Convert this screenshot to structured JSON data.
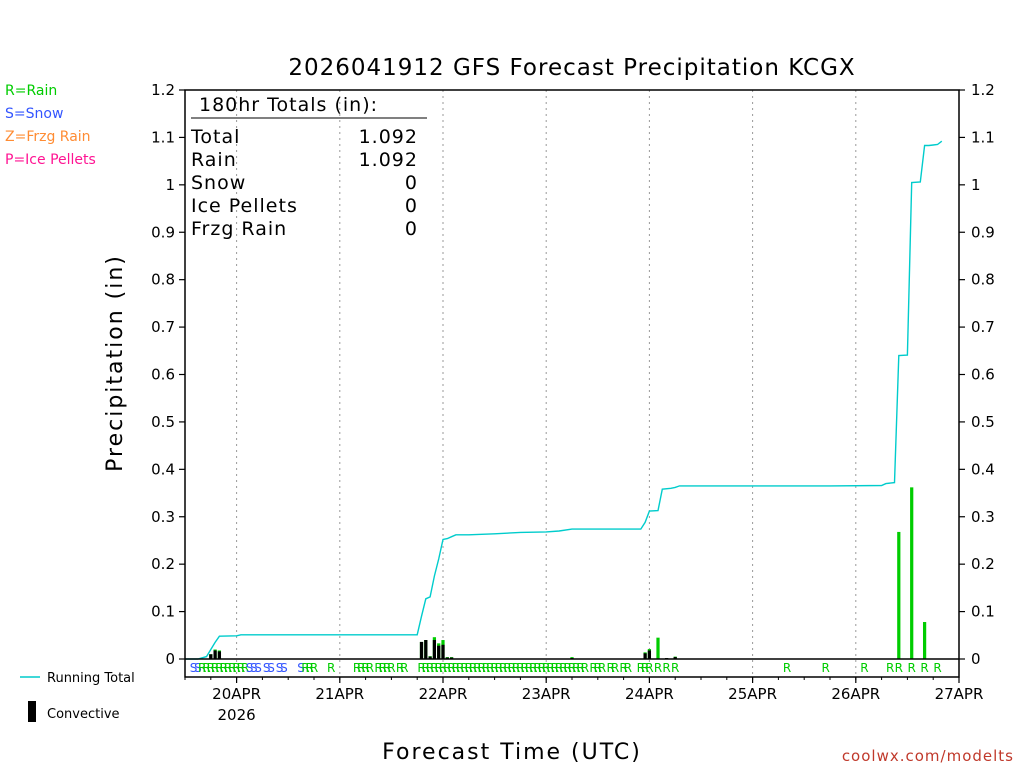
{
  "chart_data": {
    "type": "bar",
    "title": "2026041912 GFS Forecast Precipitation KCGX",
    "xlabel": "Forecast Time (UTC)",
    "ylabel": "Precipitation (in)",
    "ylim": [
      0,
      1.2
    ],
    "y_ticks": [
      "0",
      "0.1",
      "0.2",
      "0.3",
      "0.4",
      "0.5",
      "0.6",
      "0.7",
      "0.8",
      "0.9",
      "1",
      "1.1",
      "1.2"
    ],
    "x_range_hours": [
      0,
      180
    ],
    "x_ticks": [
      {
        "hour": 12,
        "label": "20APR",
        "sub": "2026"
      },
      {
        "hour": 36,
        "label": "21APR",
        "sub": ""
      },
      {
        "hour": 60,
        "label": "22APR",
        "sub": ""
      },
      {
        "hour": 84,
        "label": "23APR",
        "sub": ""
      },
      {
        "hour": 108,
        "label": "24APR",
        "sub": ""
      },
      {
        "hour": 132,
        "label": "25APR",
        "sub": ""
      },
      {
        "hour": 156,
        "label": "26APR",
        "sub": ""
      },
      {
        "hour": 180,
        "label": "27APR",
        "sub": ""
      }
    ],
    "grid": "dotted vertical lines at day boundaries",
    "totals_box": {
      "heading": "180hr Totals (in):",
      "rows": [
        {
          "label": "Total",
          "value": "1.092"
        },
        {
          "label": "Rain",
          "value": "1.092"
        },
        {
          "label": "Snow",
          "value": "0"
        },
        {
          "label": "Ice Pellets",
          "value": "0"
        },
        {
          "label": "Frzg Rain",
          "value": "0"
        }
      ]
    },
    "precip_key": [
      {
        "text": "R=Rain",
        "color": "#00cc00"
      },
      {
        "text": "S=Snow",
        "color": "#3355ff"
      },
      {
        "text": "Z=Frzg Rain",
        "color": "#ff8c33"
      },
      {
        "text": "P=Ice Pellets",
        "color": "#ff1493"
      }
    ],
    "legend": {
      "running_total": "Running Total",
      "convective": "Convective"
    },
    "running_total": {
      "name": "Running Total",
      "color": "#00cccc",
      "points": [
        [
          0,
          0
        ],
        [
          3,
          0
        ],
        [
          5,
          0.005
        ],
        [
          6,
          0.02
        ],
        [
          7,
          0.035
        ],
        [
          8,
          0.048
        ],
        [
          12,
          0.049
        ],
        [
          13,
          0.051
        ],
        [
          18,
          0.051
        ],
        [
          30,
          0.051
        ],
        [
          54,
          0.051
        ],
        [
          55,
          0.09
        ],
        [
          56,
          0.127
        ],
        [
          57,
          0.131
        ],
        [
          58,
          0.175
        ],
        [
          59,
          0.211
        ],
        [
          60,
          0.252
        ],
        [
          61,
          0.254
        ],
        [
          62,
          0.258
        ],
        [
          63,
          0.262
        ],
        [
          66,
          0.262
        ],
        [
          72,
          0.264
        ],
        [
          78,
          0.267
        ],
        [
          84,
          0.268
        ],
        [
          87,
          0.27
        ],
        [
          90,
          0.274
        ],
        [
          96,
          0.274
        ],
        [
          102,
          0.274
        ],
        [
          106,
          0.274
        ],
        [
          107,
          0.288
        ],
        [
          108,
          0.312
        ],
        [
          110,
          0.313
        ],
        [
          111,
          0.358
        ],
        [
          113,
          0.36
        ],
        [
          114,
          0.362
        ],
        [
          115,
          0.365
        ],
        [
          126,
          0.365
        ],
        [
          150,
          0.365
        ],
        [
          162,
          0.366
        ],
        [
          163,
          0.37
        ],
        [
          164,
          0.371
        ],
        [
          165,
          0.372
        ],
        [
          166,
          0.64
        ],
        [
          168,
          0.641
        ],
        [
          169,
          1.005
        ],
        [
          171,
          1.006
        ],
        [
          172,
          1.083
        ],
        [
          173,
          1.083
        ],
        [
          174,
          1.084
        ],
        [
          175,
          1.085
        ],
        [
          176,
          1.092
        ]
      ]
    },
    "precip_bars": [
      {
        "hour": 6,
        "total": 0.01,
        "conv": 0.01
      },
      {
        "hour": 7,
        "total": 0.02,
        "conv": 0.018
      },
      {
        "hour": 8,
        "total": 0.018,
        "conv": 0.016
      },
      {
        "hour": 55,
        "total": 0.036,
        "conv": 0.036
      },
      {
        "hour": 56,
        "total": 0.04,
        "conv": 0.04
      },
      {
        "hour": 57,
        "total": 0.006,
        "conv": 0.005
      },
      {
        "hour": 58,
        "total": 0.046,
        "conv": 0.04
      },
      {
        "hour": 59,
        "total": 0.033,
        "conv": 0.028
      },
      {
        "hour": 60,
        "total": 0.04,
        "conv": 0.03
      },
      {
        "hour": 61,
        "total": 0.004,
        "conv": 0.003
      },
      {
        "hour": 62,
        "total": 0.004,
        "conv": 0.003
      },
      {
        "hour": 90,
        "total": 0.004,
        "conv": 0.002
      },
      {
        "hour": 107,
        "total": 0.014,
        "conv": 0.012
      },
      {
        "hour": 108,
        "total": 0.021,
        "conv": 0.018
      },
      {
        "hour": 110,
        "total": 0.045,
        "conv": 0.0
      },
      {
        "hour": 112,
        "total": 0.002,
        "conv": 0.002
      },
      {
        "hour": 114,
        "total": 0.005,
        "conv": 0.004
      },
      {
        "hour": 166,
        "total": 0.268,
        "conv": 0.0
      },
      {
        "hour": 169,
        "total": 0.362,
        "conv": 0.0
      },
      {
        "hour": 172,
        "total": 0.078,
        "conv": 0.0
      }
    ],
    "ptype_row": [
      {
        "hour": 2,
        "t": "S",
        "c": "#3355ff"
      },
      {
        "hour": 3,
        "t": "S",
        "c": "#3355ff"
      },
      {
        "hour": 4,
        "t": "R",
        "c": "#00cc00"
      },
      {
        "hour": 5,
        "t": "R",
        "c": "#00cc00"
      },
      {
        "hour": 6,
        "t": "R",
        "c": "#00cc00"
      },
      {
        "hour": 7,
        "t": "R",
        "c": "#00cc00"
      },
      {
        "hour": 8,
        "t": "R",
        "c": "#00cc00"
      },
      {
        "hour": 9,
        "t": "R",
        "c": "#00cc00"
      },
      {
        "hour": 10,
        "t": "R",
        "c": "#00cc00"
      },
      {
        "hour": 11,
        "t": "R",
        "c": "#00cc00"
      },
      {
        "hour": 12,
        "t": "R",
        "c": "#00cc00"
      },
      {
        "hour": 13,
        "t": "R",
        "c": "#00cc00"
      },
      {
        "hour": 14,
        "t": "R",
        "c": "#00cc00"
      },
      {
        "hour": 15,
        "t": "S",
        "c": "#3355ff"
      },
      {
        "hour": 16,
        "t": "S",
        "c": "#3355ff"
      },
      {
        "hour": 17,
        "t": "S",
        "c": "#3355ff"
      },
      {
        "hour": 19,
        "t": "S",
        "c": "#3355ff"
      },
      {
        "hour": 20,
        "t": "S",
        "c": "#3355ff"
      },
      {
        "hour": 22,
        "t": "S",
        "c": "#3355ff"
      },
      {
        "hour": 23,
        "t": "S",
        "c": "#3355ff"
      },
      {
        "hour": 27,
        "t": "S",
        "c": "#3355ff"
      },
      {
        "hour": 28,
        "t": "R",
        "c": "#00cc00"
      },
      {
        "hour": 29,
        "t": "R",
        "c": "#00cc00"
      },
      {
        "hour": 30,
        "t": "R",
        "c": "#00cc00"
      },
      {
        "hour": 34,
        "t": "R",
        "c": "#00cc00"
      },
      {
        "hour": 40,
        "t": "R",
        "c": "#00cc00"
      },
      {
        "hour": 41,
        "t": "R",
        "c": "#00cc00"
      },
      {
        "hour": 42,
        "t": "R",
        "c": "#00cc00"
      },
      {
        "hour": 43,
        "t": "R",
        "c": "#00cc00"
      },
      {
        "hour": 45,
        "t": "R",
        "c": "#00cc00"
      },
      {
        "hour": 46,
        "t": "R",
        "c": "#00cc00"
      },
      {
        "hour": 47,
        "t": "R",
        "c": "#00cc00"
      },
      {
        "hour": 48,
        "t": "R",
        "c": "#00cc00"
      },
      {
        "hour": 50,
        "t": "R",
        "c": "#00cc00"
      },
      {
        "hour": 51,
        "t": "R",
        "c": "#00cc00"
      },
      {
        "hour": 55,
        "t": "R",
        "c": "#00cc00"
      },
      {
        "hour": 56,
        "t": "R",
        "c": "#00cc00"
      },
      {
        "hour": 57,
        "t": "R",
        "c": "#00cc00"
      },
      {
        "hour": 58,
        "t": "R",
        "c": "#00cc00"
      },
      {
        "hour": 59,
        "t": "R",
        "c": "#00cc00"
      },
      {
        "hour": 60,
        "t": "R",
        "c": "#00cc00"
      },
      {
        "hour": 61,
        "t": "R",
        "c": "#00cc00"
      },
      {
        "hour": 62,
        "t": "R",
        "c": "#00cc00"
      },
      {
        "hour": 63,
        "t": "R",
        "c": "#00cc00"
      },
      {
        "hour": 64,
        "t": "R",
        "c": "#00cc00"
      },
      {
        "hour": 65,
        "t": "R",
        "c": "#00cc00"
      },
      {
        "hour": 66,
        "t": "R",
        "c": "#00cc00"
      },
      {
        "hour": 67,
        "t": "R",
        "c": "#00cc00"
      },
      {
        "hour": 68,
        "t": "R",
        "c": "#00cc00"
      },
      {
        "hour": 69,
        "t": "R",
        "c": "#00cc00"
      },
      {
        "hour": 70,
        "t": "R",
        "c": "#00cc00"
      },
      {
        "hour": 71,
        "t": "R",
        "c": "#00cc00"
      },
      {
        "hour": 72,
        "t": "R",
        "c": "#00cc00"
      },
      {
        "hour": 73,
        "t": "R",
        "c": "#00cc00"
      },
      {
        "hour": 74,
        "t": "R",
        "c": "#00cc00"
      },
      {
        "hour": 75,
        "t": "R",
        "c": "#00cc00"
      },
      {
        "hour": 76,
        "t": "R",
        "c": "#00cc00"
      },
      {
        "hour": 77,
        "t": "R",
        "c": "#00cc00"
      },
      {
        "hour": 78,
        "t": "R",
        "c": "#00cc00"
      },
      {
        "hour": 79,
        "t": "R",
        "c": "#00cc00"
      },
      {
        "hour": 80,
        "t": "R",
        "c": "#00cc00"
      },
      {
        "hour": 81,
        "t": "R",
        "c": "#00cc00"
      },
      {
        "hour": 82,
        "t": "R",
        "c": "#00cc00"
      },
      {
        "hour": 83,
        "t": "R",
        "c": "#00cc00"
      },
      {
        "hour": 84,
        "t": "R",
        "c": "#00cc00"
      },
      {
        "hour": 85,
        "t": "R",
        "c": "#00cc00"
      },
      {
        "hour": 86,
        "t": "R",
        "c": "#00cc00"
      },
      {
        "hour": 87,
        "t": "R",
        "c": "#00cc00"
      },
      {
        "hour": 88,
        "t": "R",
        "c": "#00cc00"
      },
      {
        "hour": 89,
        "t": "R",
        "c": "#00cc00"
      },
      {
        "hour": 90,
        "t": "R",
        "c": "#00cc00"
      },
      {
        "hour": 91,
        "t": "R",
        "c": "#00cc00"
      },
      {
        "hour": 92,
        "t": "R",
        "c": "#00cc00"
      },
      {
        "hour": 93,
        "t": "R",
        "c": "#00cc00"
      },
      {
        "hour": 95,
        "t": "R",
        "c": "#00cc00"
      },
      {
        "hour": 96,
        "t": "R",
        "c": "#00cc00"
      },
      {
        "hour": 97,
        "t": "R",
        "c": "#00cc00"
      },
      {
        "hour": 99,
        "t": "R",
        "c": "#00cc00"
      },
      {
        "hour": 100,
        "t": "R",
        "c": "#00cc00"
      },
      {
        "hour": 102,
        "t": "R",
        "c": "#00cc00"
      },
      {
        "hour": 103,
        "t": "R",
        "c": "#00cc00"
      },
      {
        "hour": 106,
        "t": "R",
        "c": "#00cc00"
      },
      {
        "hour": 107,
        "t": "R",
        "c": "#00cc00"
      },
      {
        "hour": 108,
        "t": "R",
        "c": "#00cc00"
      },
      {
        "hour": 110,
        "t": "R",
        "c": "#00cc00"
      },
      {
        "hour": 112,
        "t": "R",
        "c": "#00cc00"
      },
      {
        "hour": 114,
        "t": "R",
        "c": "#00cc00"
      },
      {
        "hour": 140,
        "t": "R",
        "c": "#00cc00"
      },
      {
        "hour": 149,
        "t": "R",
        "c": "#00cc00"
      },
      {
        "hour": 158,
        "t": "R",
        "c": "#00cc00"
      },
      {
        "hour": 164,
        "t": "R",
        "c": "#00cc00"
      },
      {
        "hour": 166,
        "t": "R",
        "c": "#00cc00"
      },
      {
        "hour": 169,
        "t": "R",
        "c": "#00cc00"
      },
      {
        "hour": 172,
        "t": "R",
        "c": "#00cc00"
      },
      {
        "hour": 175,
        "t": "R",
        "c": "#00cc00"
      }
    ]
  },
  "credit": "coolwx.com/modelts"
}
